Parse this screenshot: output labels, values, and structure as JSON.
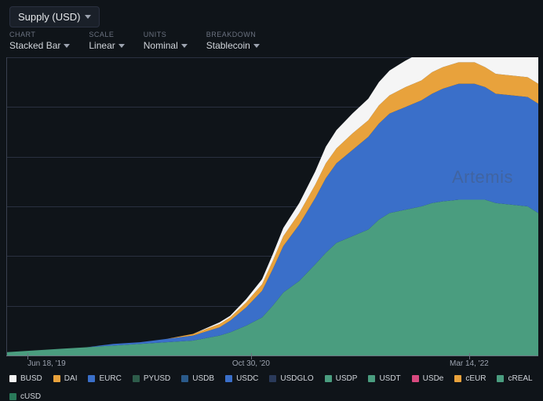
{
  "header": {
    "metric_label": "Supply (USD)"
  },
  "controls": {
    "chart": {
      "label": "CHART",
      "value": "Stacked Bar"
    },
    "scale": {
      "label": "SCALE",
      "value": "Linear"
    },
    "units": {
      "label": "UNITS",
      "value": "Nominal"
    },
    "breakdown": {
      "label": "BREAKDOWN",
      "value": "Stablecoin"
    }
  },
  "watermark": "Artemis",
  "chart": {
    "type": "area-stacked",
    "background_color": "#0f1419",
    "grid_color": "#2a3040",
    "axis_color": "#6b7280",
    "label_color": "#9ca3af",
    "label_fontsize": 10,
    "ylim": [
      0,
      180
    ],
    "grid_lines_pct": [
      0,
      16.6,
      33.3,
      50,
      66.6,
      83.3,
      100
    ],
    "x_points": [
      0,
      5,
      10,
      15,
      20,
      25,
      30,
      35,
      40,
      42,
      45,
      48,
      50,
      52,
      55,
      58,
      60,
      62,
      65,
      68,
      70,
      72,
      75,
      78,
      80,
      82,
      85,
      88,
      90,
      92,
      95,
      98,
      100
    ],
    "series": [
      {
        "name": "USDT",
        "color": "#4a9d7f",
        "values": [
          2,
          3,
          4,
          5,
          6,
          7,
          8,
          9,
          12,
          14,
          18,
          23,
          30,
          38,
          45,
          55,
          62,
          68,
          72,
          76,
          82,
          86,
          88,
          90,
          92,
          93,
          94,
          94,
          94,
          92,
          91,
          90,
          86
        ]
      },
      {
        "name": "USDC",
        "color": "#3a6fc9",
        "values": [
          0,
          0,
          0,
          0,
          1,
          1,
          2,
          3,
          5,
          7,
          11,
          16,
          22,
          28,
          34,
          40,
          45,
          48,
          52,
          56,
          58,
          60,
          62,
          64,
          66,
          68,
          70,
          70,
          68,
          66,
          66,
          66,
          66
        ]
      },
      {
        "name": "DAI",
        "color": "#e8a23c",
        "values": [
          0,
          0,
          0,
          0,
          0,
          0,
          0,
          1,
          2,
          2,
          3,
          4,
          5,
          6,
          7,
          8,
          9,
          9,
          10,
          10,
          11,
          11,
          12,
          12,
          13,
          13,
          13,
          13,
          12,
          12,
          12,
          12,
          12
        ]
      },
      {
        "name": "BUSD",
        "color": "#f5f5f5",
        "values": [
          0,
          0,
          0,
          0,
          0,
          0,
          0,
          0,
          1,
          1,
          2,
          3,
          4,
          5,
          6,
          8,
          10,
          11,
          12,
          13,
          14,
          15,
          16,
          17,
          18,
          19,
          20,
          21,
          22,
          21,
          23,
          24,
          20
        ]
      }
    ],
    "x_ticks": [
      {
        "pos_pct": 4,
        "label": "Jun 18, '19"
      },
      {
        "pos_pct": 46,
        "label": "Oct 30, '20"
      },
      {
        "pos_pct": 87,
        "label": "Mar 14, '22"
      }
    ]
  },
  "legend": [
    {
      "name": "BUSD",
      "color": "#f5f5f5"
    },
    {
      "name": "DAI",
      "color": "#e8a23c"
    },
    {
      "name": "EURC",
      "color": "#3a6fc9"
    },
    {
      "name": "PYUSD",
      "color": "#2d5c4a"
    },
    {
      "name": "USDB",
      "color": "#2a5a8a"
    },
    {
      "name": "USDC",
      "color": "#3a6fc9"
    },
    {
      "name": "USDGLO",
      "color": "#2a3a5a"
    },
    {
      "name": "USDP",
      "color": "#4a9d7f"
    },
    {
      "name": "USDT",
      "color": "#4a9d7f"
    },
    {
      "name": "USDe",
      "color": "#d84a7f"
    },
    {
      "name": "cEUR",
      "color": "#e8a23c"
    },
    {
      "name": "cREAL",
      "color": "#4a9d7f"
    },
    {
      "name": "cUSD",
      "color": "#2a7a5a"
    }
  ]
}
